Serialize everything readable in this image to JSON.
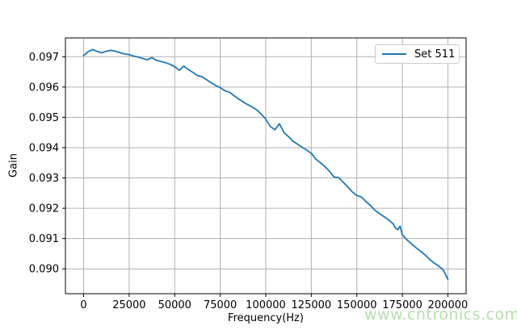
{
  "watermark": {
    "text": "www.cntronics.com",
    "color": "#b4dfad"
  },
  "chart_data": {
    "type": "line",
    "title": "",
    "xlabel": "Frequency(Hz)",
    "ylabel": "Gain",
    "grid": true,
    "grid_color": "#b0b0b0",
    "axis_color": "#000000",
    "background_color": "#ffffff",
    "xlim": [
      -10000,
      210000
    ],
    "ylim": [
      0.08918,
      0.09762
    ],
    "xticks": [
      0,
      25000,
      50000,
      75000,
      100000,
      125000,
      150000,
      175000,
      200000
    ],
    "ytick_labels": [
      "0.090",
      "0.091",
      "0.092",
      "0.093",
      "0.094",
      "0.095",
      "0.096",
      "0.097"
    ],
    "legend": {
      "position": "upper right",
      "entries": [
        "Set 511"
      ]
    },
    "series": [
      {
        "name": "Set 511",
        "color": "#1f77b4",
        "x": [
          0,
          2500,
          5000,
          7500,
          10000,
          12500,
          15000,
          17500,
          20000,
          22500,
          25000,
          27500,
          30000,
          32500,
          35000,
          37500,
          40000,
          42500,
          45000,
          47500,
          50000,
          52500,
          55000,
          57500,
          60000,
          62500,
          65000,
          67500,
          70000,
          72500,
          75000,
          77500,
          80000,
          82500,
          85000,
          87500,
          90000,
          92500,
          95000,
          97500,
          100000,
          102500,
          105000,
          107500,
          110000,
          112500,
          115000,
          117500,
          120000,
          122500,
          125000,
          127500,
          130000,
          132500,
          135000,
          137500,
          140000,
          142500,
          145000,
          147500,
          150000,
          152500,
          155000,
          157500,
          160000,
          162500,
          165000,
          167500,
          170000,
          171250,
          172500,
          173750,
          175000,
          177500,
          180000,
          182500,
          185000,
          187500,
          190000,
          192500,
          195000,
          197500,
          200000
        ],
        "y": [
          0.09704,
          0.09717,
          0.09724,
          0.09717,
          0.09713,
          0.09718,
          0.09721,
          0.09718,
          0.09713,
          0.09709,
          0.09707,
          0.09702,
          0.09699,
          0.09694,
          0.0969,
          0.09697,
          0.09688,
          0.09684,
          0.0968,
          0.09675,
          0.09667,
          0.09655,
          0.09669,
          0.09658,
          0.09648,
          0.09638,
          0.09634,
          0.09624,
          0.09614,
          0.09605,
          0.09598,
          0.09588,
          0.09583,
          0.09572,
          0.09561,
          0.09551,
          0.09542,
          0.09534,
          0.09525,
          0.09511,
          0.09494,
          0.0947,
          0.09459,
          0.09479,
          0.0945,
          0.09436,
          0.09421,
          0.09411,
          0.09401,
          0.09392,
          0.09381,
          0.09362,
          0.0935,
          0.09337,
          0.09322,
          0.09303,
          0.09301,
          0.09286,
          0.0927,
          0.09254,
          0.09242,
          0.09237,
          0.09222,
          0.09209,
          0.09193,
          0.09182,
          0.09172,
          0.09161,
          0.09148,
          0.09135,
          0.09129,
          0.09141,
          0.09112,
          0.09096,
          0.09082,
          0.0907,
          0.09058,
          0.09046,
          0.09031,
          0.09019,
          0.09009,
          0.08996,
          0.08965
        ]
      }
    ]
  }
}
